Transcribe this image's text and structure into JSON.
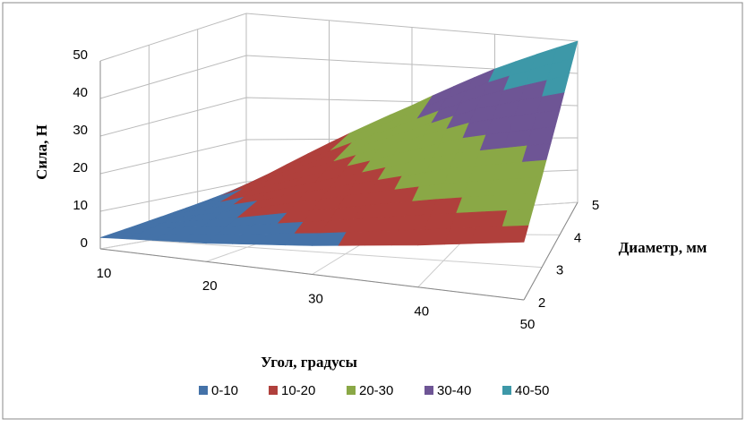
{
  "chart_data": {
    "type": "surface",
    "x_label": "Угол, градусы",
    "y_label": "Диаметр, мм",
    "z_label": "Сила, Н",
    "categories": [
      "10",
      "20",
      "30",
      "40",
      "50"
    ],
    "series": [
      {
        "name": "2",
        "values": [
          3,
          5,
          8,
          12,
          17
        ]
      },
      {
        "name": "3",
        "values": [
          5,
          10,
          16,
          22,
          27
        ]
      },
      {
        "name": "4",
        "values": [
          7,
          15,
          23,
          32,
          38
        ]
      },
      {
        "name": "5",
        "values": [
          9,
          19,
          29,
          40,
          50
        ]
      }
    ],
    "zlim": [
      0,
      50
    ],
    "zticks": [
      0,
      10,
      20,
      30,
      40,
      50
    ],
    "legend": [
      {
        "name": "0-10",
        "color": "#4472a8"
      },
      {
        "name": "10-20",
        "color": "#b0403c"
      },
      {
        "name": "20-30",
        "color": "#8aa846"
      },
      {
        "name": "30-40",
        "color": "#6e5595"
      },
      {
        "name": "40-50",
        "color": "#3d98a8"
      }
    ]
  }
}
